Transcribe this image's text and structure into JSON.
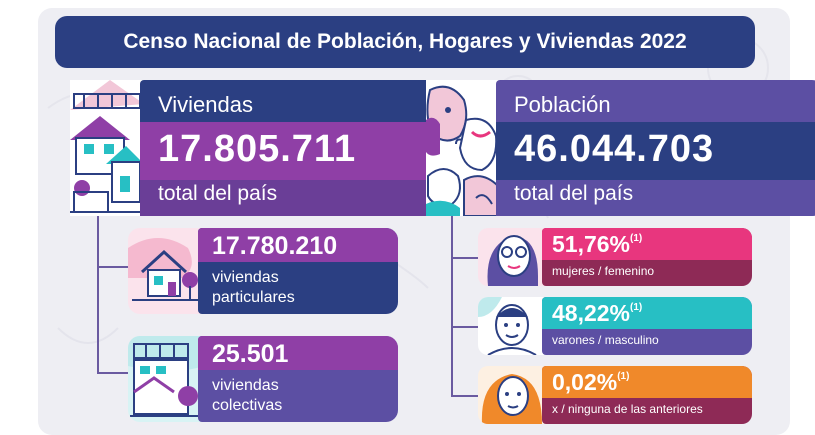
{
  "title": "Censo Nacional de Población, Hogares y Viviendas 2022",
  "viviendas": {
    "label": "Viviendas",
    "value": "17.805.711",
    "sub": "total del país",
    "particulares": {
      "value": "17.780.210",
      "line1": "viviendas",
      "line2": "particulares"
    },
    "colectivas": {
      "value": "25.501",
      "line1": "viviendas",
      "line2": "colectivas"
    }
  },
  "poblacion": {
    "label": "Población",
    "value": "46.044.703",
    "sub": "total del país",
    "mujeres": {
      "value": "51,76%",
      "note": "(1)",
      "sub": "mujeres / femenino"
    },
    "varones": {
      "value": "48,22%",
      "note": "(1)",
      "sub": "varones / masculino"
    },
    "x": {
      "value": "0,02%",
      "note": "(1)",
      "sub": "x / ninguna de las anteriores"
    }
  },
  "colors": {
    "navy": "#2b3f82",
    "purple": "#8f3fa6",
    "violet": "#5c4fa3",
    "pink": "#e8367e",
    "teal": "#27bfc4",
    "orange": "#f0892a",
    "maroon": "#8e2a56"
  },
  "icons": {
    "viviendas": "houses-illustration-icon",
    "poblacion": "people-illustration-icon",
    "particulares": "house-icon",
    "colectivas": "building-icon",
    "mujeres": "woman-face-icon",
    "varones": "man-face-icon",
    "x": "person-face-icon"
  }
}
